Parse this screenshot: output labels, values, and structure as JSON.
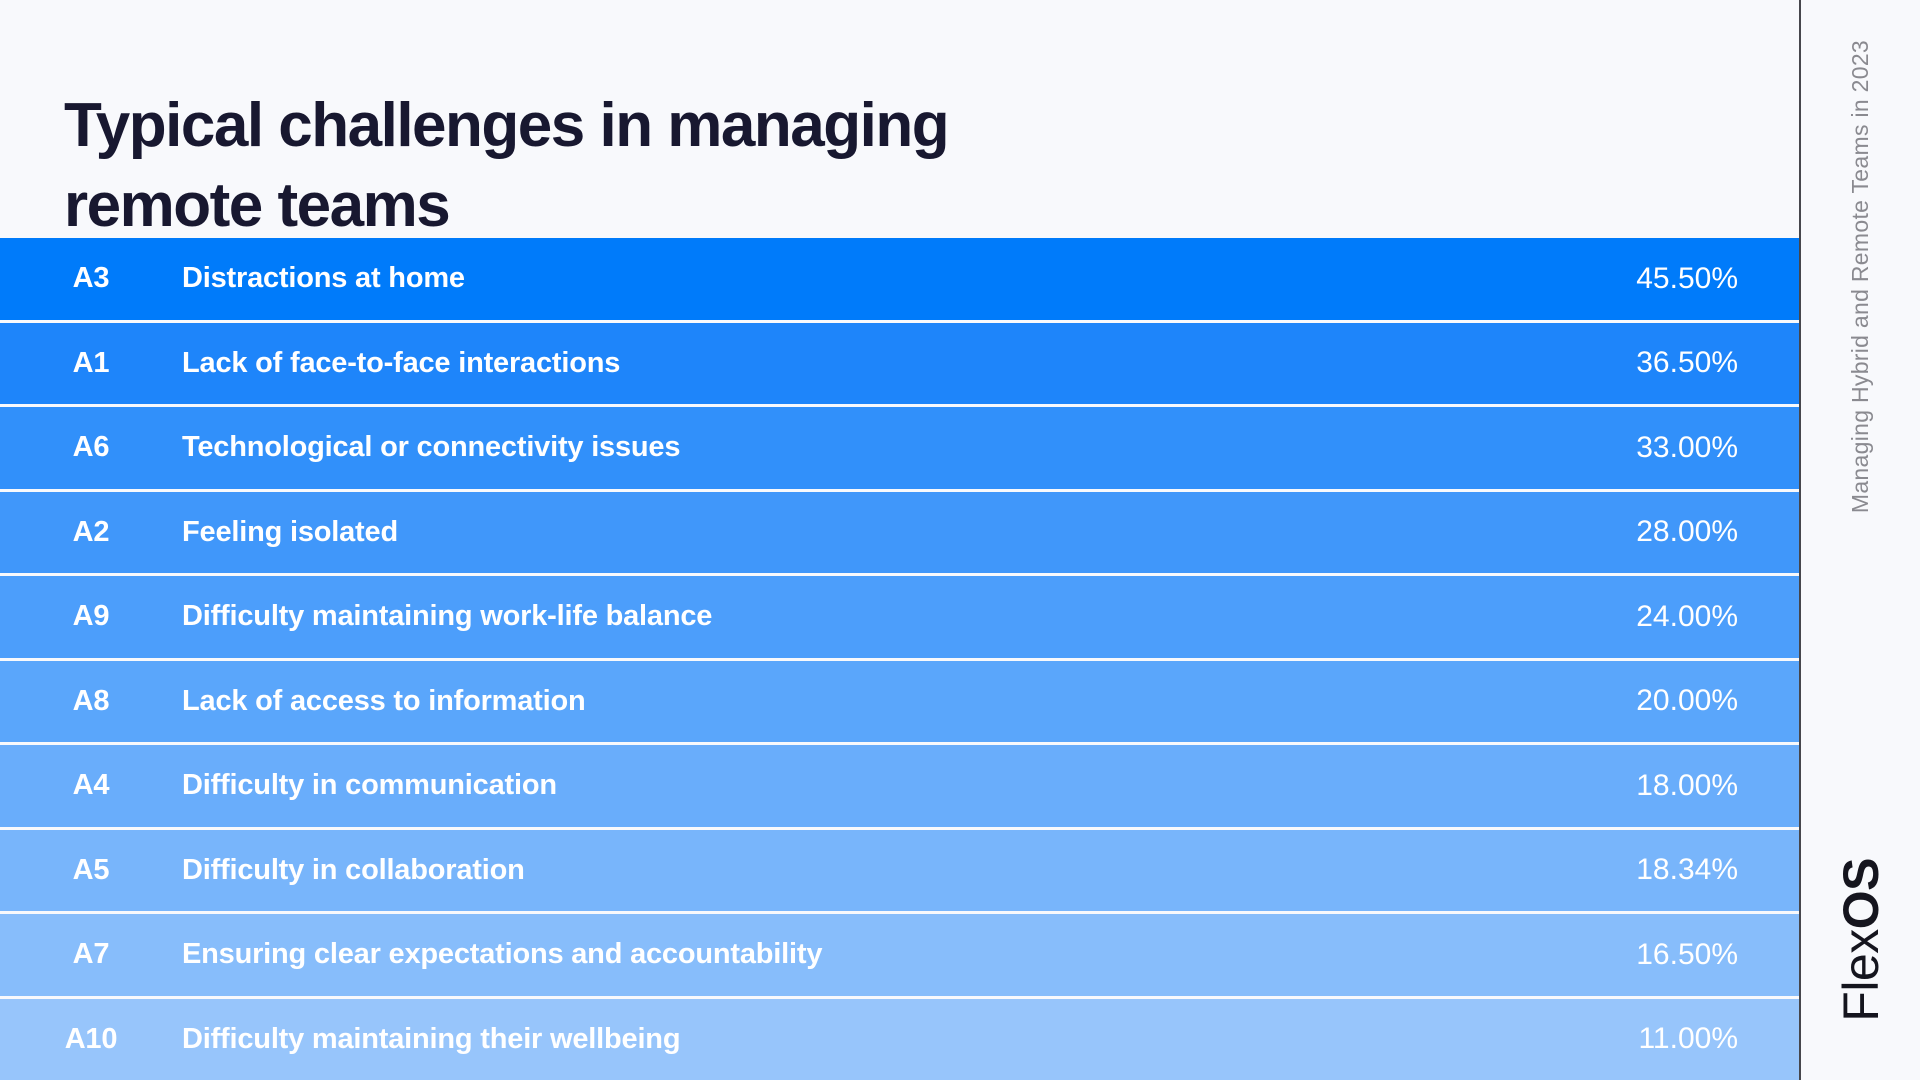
{
  "page": {
    "background": "#F8F9FC",
    "divider_color": "#46464C"
  },
  "title": {
    "text": "Typical challenges in managing\nremote teams",
    "color": "#181830"
  },
  "rows": [
    {
      "code": "A3",
      "label": "Distractions at home",
      "value": "45.50%",
      "color": "#007BFA"
    },
    {
      "code": "A1",
      "label": "Lack of face-to-face interactions",
      "value": "36.50%",
      "color": "#1E85FA"
    },
    {
      "code": "A6",
      "label": "Technological or connectivity issues",
      "value": "33.00%",
      "color": "#3190FA"
    },
    {
      "code": "A2",
      "label": "Feeling isolated",
      "value": "28.00%",
      "color": "#4097FA"
    },
    {
      "code": "A9",
      "label": "Difficulty maintaining work-life balance",
      "value": "24.00%",
      "color": "#4C9EFB"
    },
    {
      "code": "A8",
      "label": "Lack of access to information",
      "value": "20.00%",
      "color": "#5AA6FB"
    },
    {
      "code": "A4",
      "label": "Difficulty in communication",
      "value": "18.00%",
      "color": "#69ADFB"
    },
    {
      "code": "A5",
      "label": "Difficulty in collaboration",
      "value": "18.34%",
      "color": "#78B5FB"
    },
    {
      "code": "A7",
      "label": "Ensuring clear expectations and accountability",
      "value": "16.50%",
      "color": "#87BDFB"
    },
    {
      "code": "A10",
      "label": "Difficulty maintaining their wellbeing",
      "value": "11.00%",
      "color": "#97C5FB"
    }
  ],
  "sidebar": {
    "caption": "Managing Hybrid and Remote Teams in 2023",
    "caption_color": "#8A8A90",
    "logo_flex": "Flex",
    "logo_os": "OS",
    "logo_color": "#15151E"
  },
  "chart_data": {
    "type": "bar",
    "orientation": "horizontal-rows",
    "title": "Typical challenges in managing remote teams",
    "categories": [
      "A3",
      "A1",
      "A6",
      "A2",
      "A9",
      "A8",
      "A4",
      "A5",
      "A7",
      "A10"
    ],
    "category_labels": [
      "Distractions at home",
      "Lack of face-to-face interactions",
      "Technological or connectivity issues",
      "Feeling isolated",
      "Difficulty maintaining work-life balance",
      "Lack of access to information",
      "Difficulty in communication",
      "Difficulty in collaboration",
      "Ensuring clear expectations and accountability",
      "Difficulty maintaining their wellbeing"
    ],
    "values": [
      45.5,
      36.5,
      33.0,
      28.0,
      24.0,
      20.0,
      18.0,
      18.34,
      16.5,
      11.0
    ],
    "value_format": "percent",
    "legend": "none",
    "grid": false,
    "color_ramp": [
      "#007BFA",
      "#97C5FB"
    ],
    "source_caption": "Managing Hybrid and Remote Teams in 2023",
    "brand": "FlexOS"
  }
}
